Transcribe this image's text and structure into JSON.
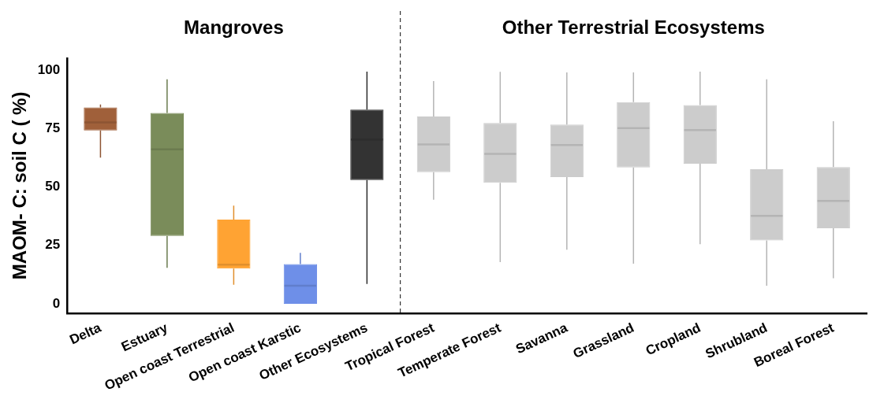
{
  "chart_data": {
    "type": "box",
    "ylabel": "MAOM- C: soil C ( %)",
    "annotations": [
      "Mangroves",
      "Other Terrestrial Ecosystems"
    ],
    "categories": [
      "Delta",
      "Estuary",
      "Open coast Terrestrial",
      "Open coast Karstic",
      "Other Ecosystems",
      "Tropical Forest",
      "Temperate Forest",
      "Savanna",
      "Grassland",
      "Cropland",
      "Shrubland",
      "Boreal Forest"
    ],
    "colors": [
      "#a0603a",
      "#7a8c5a",
      "#ffa333",
      "#6e8fe8",
      "#333333",
      "#cccccc",
      "#cccccc",
      "#cccccc",
      "#cccccc",
      "#cccccc",
      "#cccccc",
      "#cccccc"
    ],
    "boxes": [
      {
        "low": 62.5,
        "q1": 74.1,
        "median": 77.6,
        "q3": 84,
        "high": 85.2
      },
      {
        "low": 15.4,
        "q1": 29,
        "median": 66,
        "q3": 81.6,
        "high": 96
      },
      {
        "low": 8.1,
        "q1": 15,
        "median": 16.7,
        "q3": 36,
        "high": 42
      },
      {
        "low": 0,
        "q1": 0,
        "median": 7.7,
        "q3": 17,
        "high": 21.8
      },
      {
        "low": 8.5,
        "q1": 52.9,
        "median": 70.2,
        "q3": 83,
        "high": 99.3
      },
      {
        "low": 44.5,
        "q1": 56.3,
        "median": 68.1,
        "q3": 80.1,
        "high": 95.2
      },
      {
        "low": 17.8,
        "q1": 51.7,
        "median": 64.1,
        "q3": 77.3,
        "high": 99.2
      },
      {
        "low": 23.1,
        "q1": 54.2,
        "median": 67.9,
        "q3": 76.6,
        "high": 98.9
      },
      {
        "low": 17.1,
        "q1": 58.3,
        "median": 75.1,
        "q3": 86.2,
        "high": 98.9
      },
      {
        "low": 25.5,
        "q1": 59.9,
        "median": 74.3,
        "q3": 85,
        "high": 99.3
      },
      {
        "low": 7.7,
        "q1": 27.1,
        "median": 37.6,
        "q3": 57.5,
        "high": 96
      },
      {
        "low": 10.9,
        "q1": 32.3,
        "median": 44,
        "q3": 58.5,
        "high": 78.1
      }
    ],
    "ylim": [
      -4,
      105
    ],
    "yticks": [
      0,
      25,
      50,
      75,
      100
    ],
    "grid": false,
    "legend": false
  }
}
